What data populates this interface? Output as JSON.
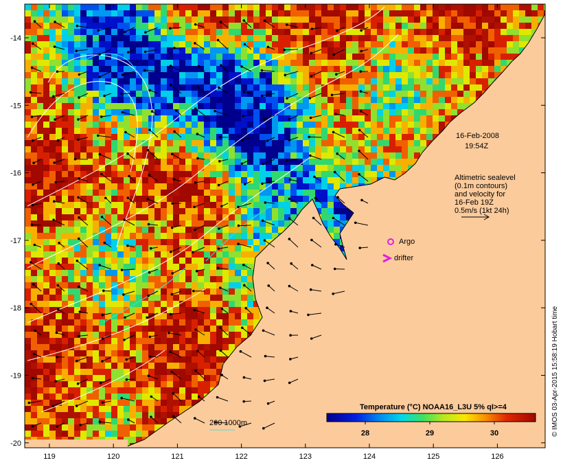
{
  "map": {
    "date_label": "16-Feb-2008",
    "time_label": "19:54Z",
    "altimetry_lines": [
      "Altimetric sealevel",
      "(0.1m contours)",
      "and velocity for",
      "16-Feb 19Z",
      "0.5m/s (1kt 24h)"
    ],
    "argo_label": "Argo",
    "drifter_label": "drifter",
    "depth_scale_label": "200  1000m",
    "colorbar_title": "Temperature (°C) NOAA16_L3U 5% qI>=4",
    "colorbar_ticks": [
      "28",
      "29",
      "30"
    ],
    "credit": "© IMOS 03-Apr-2015 15:58:19 Hobart time",
    "x_ticks": [
      "119",
      "120",
      "121",
      "122",
      "123",
      "124",
      "125",
      "126"
    ],
    "y_ticks": [
      "-14",
      "-15",
      "-16",
      "-17",
      "-18",
      "-19",
      "-20"
    ],
    "colors": {
      "land": "#fccb9c",
      "hot": "#b01000",
      "cold": "#00008c",
      "arrow": "#000000",
      "contour": "#ffffff",
      "argo": "#e020e0"
    }
  }
}
